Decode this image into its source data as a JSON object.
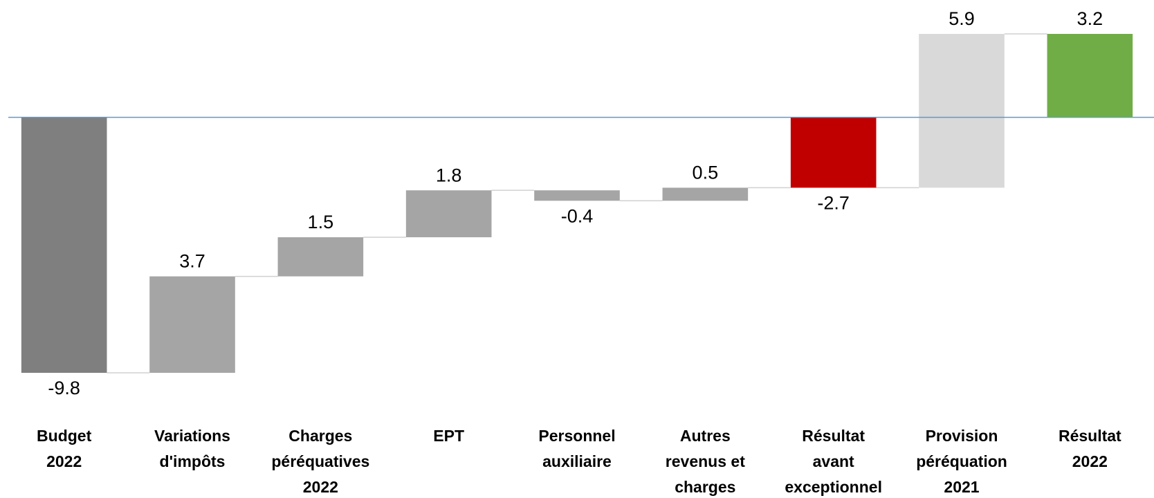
{
  "chart_data": {
    "type": "waterfall",
    "categories": [
      [
        "Budget",
        "2022"
      ],
      [
        "Variations",
        "d'impôts"
      ],
      [
        "Charges",
        "péréquatives",
        "2022"
      ],
      [
        "EPT"
      ],
      [
        "Personnel",
        "auxiliaire"
      ],
      [
        "Autres",
        "revenus et",
        "charges"
      ],
      [
        "Résultat",
        "avant",
        "exceptionnel"
      ],
      [
        "Provision",
        "péréquation",
        "2021"
      ],
      [
        "Résultat",
        "2022"
      ]
    ],
    "values": [
      -9.8,
      3.7,
      1.5,
      1.8,
      -0.4,
      0.5,
      -2.7,
      5.9,
      3.2
    ],
    "is_total": [
      true,
      false,
      false,
      false,
      false,
      false,
      true,
      false,
      true
    ],
    "colors": [
      "#7f7f7f",
      "#a5a5a5",
      "#a5a5a5",
      "#a5a5a5",
      "#a5a5a5",
      "#a5a5a5",
      "#c00000",
      "#d9d9d9",
      "#70ad47"
    ],
    "ylim": [
      -11.55,
      4.5
    ]
  }
}
